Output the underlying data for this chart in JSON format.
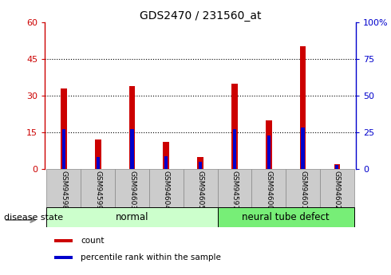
{
  "title": "GDS2470 / 231560_at",
  "samples": [
    "GSM94598",
    "GSM94599",
    "GSM94603",
    "GSM94604",
    "GSM94605",
    "GSM94597",
    "GSM94600",
    "GSM94601",
    "GSM94602"
  ],
  "counts": [
    33,
    12,
    34,
    11,
    5,
    35,
    20,
    50,
    2
  ],
  "percentile_ranks": [
    27,
    8,
    27,
    9,
    5,
    27,
    23,
    28,
    3
  ],
  "groups": [
    {
      "label": "normal",
      "start": 0,
      "end": 4,
      "color": "#ccffcc"
    },
    {
      "label": "neural tube defect",
      "start": 5,
      "end": 8,
      "color": "#77ee77"
    }
  ],
  "left_axis_color": "#cc0000",
  "right_axis_color": "#0000cc",
  "bar_color_count": "#cc0000",
  "bar_color_pct": "#0000cc",
  "left_ylim": [
    0,
    60
  ],
  "left_yticks": [
    0,
    15,
    30,
    45,
    60
  ],
  "right_ylim": [
    0,
    100
  ],
  "right_yticks": [
    0,
    25,
    50,
    75,
    100
  ],
  "grid_yticks": [
    15,
    30,
    45
  ],
  "red_bar_width": 0.18,
  "blue_bar_width": 0.1,
  "disease_state_label": "disease state",
  "legend_items": [
    {
      "label": "count",
      "color": "#cc0000"
    },
    {
      "label": "percentile rank within the sample",
      "color": "#0000cc"
    }
  ],
  "tick_label_bg": "#cccccc",
  "right_axis_top_label": "100%"
}
